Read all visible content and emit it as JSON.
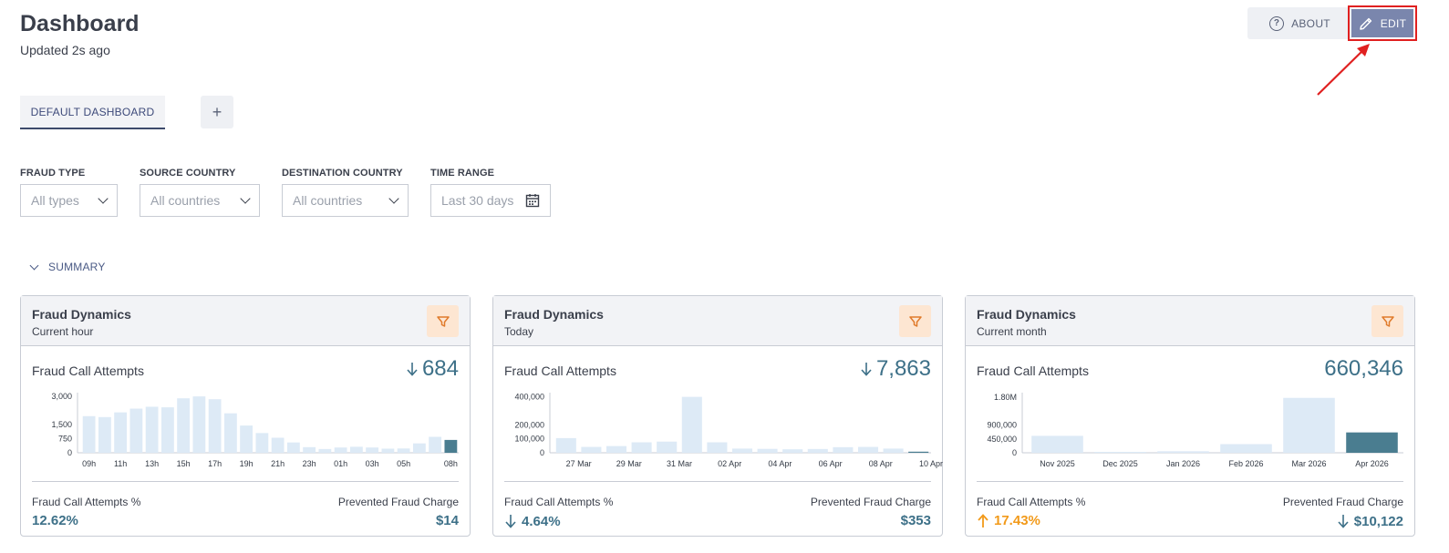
{
  "header": {
    "title": "Dashboard",
    "updated": "Updated 2s ago",
    "about_label": "ABOUT",
    "edit_label": "EDIT"
  },
  "tabs": {
    "default_label": "DEFAULT DASHBOARD",
    "add_label": "+"
  },
  "filters": [
    {
      "label": "FRAUD TYPE",
      "value": "All types",
      "icon": "chevron-down-icon"
    },
    {
      "label": "SOURCE COUNTRY",
      "value": "All countries",
      "icon": "chevron-down-icon"
    },
    {
      "label": "DESTINATION COUNTRY",
      "value": "All countries",
      "icon": "chevron-down-icon"
    },
    {
      "label": "TIME RANGE",
      "value": "Last 30 days",
      "icon": "calendar-icon"
    }
  ],
  "summary_label": "SUMMARY",
  "colors": {
    "bar_light": "#ddeaf6",
    "bar_current": "#4a7d90",
    "accent": "#3d7088",
    "up_orange": "#f29a1a"
  },
  "cards": [
    {
      "title": "Fraud Dynamics",
      "subtitle": "Current hour",
      "metric_label": "Fraud Call Attempts",
      "metric_value": "684",
      "metric_trend": "down",
      "stat_left_label": "Fraud Call Attempts %",
      "stat_left_value": "12.62%",
      "stat_left_trend": "none",
      "stat_right_label": "Prevented Fraud Charge",
      "stat_right_value": "$14",
      "stat_right_trend": "none",
      "chart_data": {
        "type": "bar",
        "ylim": [
          0,
          3200
        ],
        "yticks": [
          {
            "value": 0,
            "label": "0"
          },
          {
            "value": 750,
            "label": "750"
          },
          {
            "value": 1500,
            "label": "1,500"
          },
          {
            "value": 3000,
            "label": "3,000"
          }
        ],
        "xticks": [
          {
            "index": 0,
            "label": "09h"
          },
          {
            "index": 2,
            "label": "11h"
          },
          {
            "index": 4,
            "label": "13h"
          },
          {
            "index": 6,
            "label": "15h"
          },
          {
            "index": 8,
            "label": "17h"
          },
          {
            "index": 10,
            "label": "19h"
          },
          {
            "index": 12,
            "label": "21h"
          },
          {
            "index": 14,
            "label": "23h"
          },
          {
            "index": 16,
            "label": "01h"
          },
          {
            "index": 18,
            "label": "03h"
          },
          {
            "index": 20,
            "label": "05h"
          },
          {
            "index": 23,
            "label": "08h"
          }
        ],
        "values": [
          1950,
          1900,
          2150,
          2350,
          2450,
          2420,
          2900,
          3000,
          2850,
          2100,
          1450,
          1050,
          800,
          550,
          300,
          200,
          280,
          320,
          280,
          220,
          230,
          500,
          850,
          684
        ],
        "highlight_last": true
      }
    },
    {
      "title": "Fraud Dynamics",
      "subtitle": "Today",
      "metric_label": "Fraud Call Attempts",
      "metric_value": "7,863",
      "metric_trend": "down",
      "stat_left_label": "Fraud Call Attempts %",
      "stat_left_value": "4.64%",
      "stat_left_trend": "down",
      "stat_right_label": "Prevented Fraud Charge",
      "stat_right_value": "$353",
      "stat_right_trend": "none",
      "chart_data": {
        "type": "bar",
        "ylim": [
          0,
          430000
        ],
        "yticks": [
          {
            "value": 0,
            "label": "0"
          },
          {
            "value": 100000,
            "label": "100,000"
          },
          {
            "value": 200000,
            "label": "200,000"
          },
          {
            "value": 400000,
            "label": "400,000"
          }
        ],
        "xticks": [
          {
            "index": 0.5,
            "label": "27 Mar"
          },
          {
            "index": 2.5,
            "label": "29 Mar"
          },
          {
            "index": 4.5,
            "label": "31 Mar"
          },
          {
            "index": 6.5,
            "label": "02 Apr"
          },
          {
            "index": 8.5,
            "label": "04 Apr"
          },
          {
            "index": 10.5,
            "label": "06 Apr"
          },
          {
            "index": 12.5,
            "label": "08 Apr"
          },
          {
            "index": 14.5,
            "label": "10 Apr"
          }
        ],
        "values": [
          105000,
          42000,
          48000,
          75000,
          80000,
          400000,
          75000,
          30000,
          28000,
          25000,
          27000,
          40000,
          42000,
          30000,
          7863
        ],
        "highlight_last": true
      }
    },
    {
      "title": "Fraud Dynamics",
      "subtitle": "Current month",
      "metric_label": "Fraud Call Attempts",
      "metric_value": "660,346",
      "metric_trend": "none",
      "stat_left_label": "Fraud Call Attempts %",
      "stat_left_value": "17.43%",
      "stat_left_trend": "up",
      "stat_right_label": "Prevented Fraud Charge",
      "stat_right_value": "$10,122",
      "stat_right_trend": "down",
      "chart_data": {
        "type": "bar",
        "ylim": [
          0,
          1950000
        ],
        "yticks": [
          {
            "value": 0,
            "label": "0"
          },
          {
            "value": 450000,
            "label": "450,000"
          },
          {
            "value": 900000,
            "label": "900,000"
          },
          {
            "value": 1800000,
            "label": "1.80M"
          }
        ],
        "xticks": [
          {
            "index": 0,
            "label": "Nov 2025"
          },
          {
            "index": 1,
            "label": "Dec 2025"
          },
          {
            "index": 2,
            "label": "Jan 2026"
          },
          {
            "index": 3,
            "label": "Feb 2026"
          },
          {
            "index": 4,
            "label": "Mar 2026"
          },
          {
            "index": 5,
            "label": "Apr 2026"
          }
        ],
        "values": [
          550000,
          30000,
          50000,
          280000,
          1780000,
          660346
        ],
        "highlight_last": true
      }
    }
  ]
}
